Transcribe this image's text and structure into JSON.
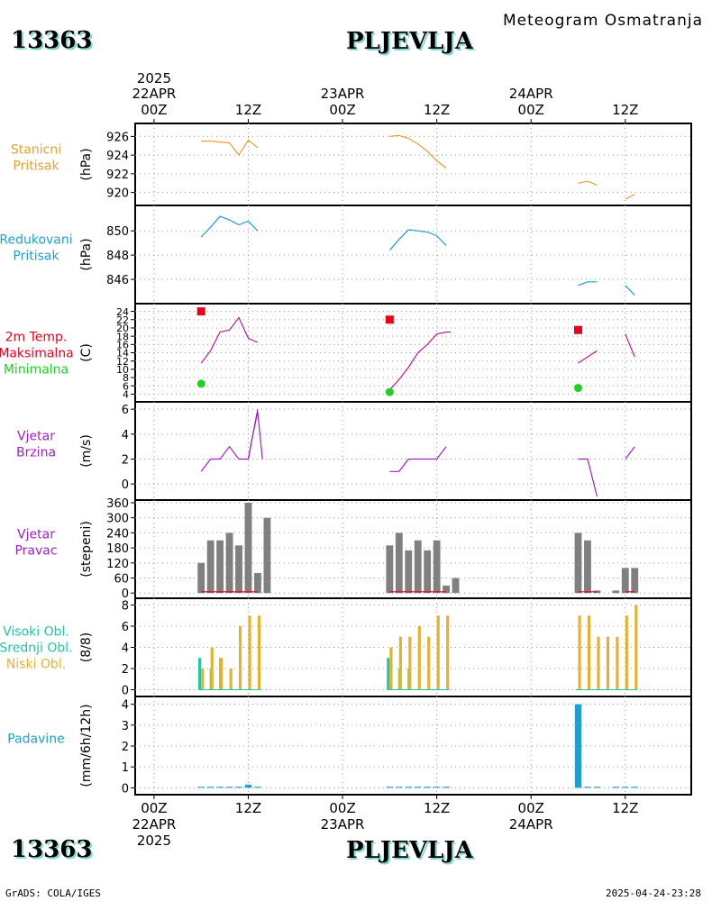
{
  "header": {
    "station_id": "13363",
    "station_name": "PLJEVLJA",
    "subtitle": "Meteogram Osmatranja"
  },
  "footer": {
    "left": "GrADS: COLA/IGES",
    "right": "2025-04-24-23:28",
    "station_id": "13363",
    "station_name": "PLJEVLJA"
  },
  "time_axis": {
    "x_range": [
      -2,
      57
    ],
    "top_year": "2025",
    "bottom_year": "2025",
    "ticks": [
      {
        "x": 0,
        "hour": "00Z",
        "date": "22APR"
      },
      {
        "x": 10,
        "hour": "12Z",
        "date": ""
      },
      {
        "x": 20,
        "hour": "00Z",
        "date": "23APR"
      },
      {
        "x": 30,
        "hour": "12Z",
        "date": ""
      },
      {
        "x": 40,
        "hour": "00Z",
        "date": "24APR"
      },
      {
        "x": 50,
        "hour": "12Z",
        "date": ""
      }
    ]
  },
  "colors": {
    "pressure_station": "#e8a030",
    "pressure_reduced": "#1e9fd0",
    "temp_max": "#e8001c",
    "temp_min": "#1ed21e",
    "temp_line": "#c0189a",
    "wind_speed": "#a020c8",
    "wind_dir_bar": "#808080",
    "wind_dir_line": "#e8001c",
    "cloud_high": "#1ec8a0",
    "cloud_mid": "#96c83c",
    "cloud_low": "#e8b030",
    "precip": "#1e9fd0"
  },
  "chart_data": [
    {
      "type": "line",
      "label_lines": [
        "Stanicni",
        "Pritisak"
      ],
      "label_color": "#e8a030",
      "ylabel": "(hPa)",
      "yticks": [
        920,
        922,
        924,
        926
      ],
      "ylim": [
        919,
        927
      ],
      "series": [
        {
          "color": "#e8a030",
          "x": [
            5,
            6,
            7,
            8,
            9,
            10,
            11
          ],
          "y": [
            925.5,
            925.5,
            925.4,
            925.3,
            924.0,
            925.6,
            924.8
          ]
        },
        {
          "color": "#e8a030",
          "x": [
            25,
            26,
            27,
            28,
            29,
            30,
            31
          ],
          "y": [
            926.0,
            926.1,
            925.8,
            925.2,
            924.4,
            923.4,
            922.6
          ]
        },
        {
          "color": "#e8a030",
          "x": [
            45,
            46,
            47
          ],
          "y": [
            921.0,
            921.2,
            920.8
          ]
        },
        {
          "color": "#e8a030",
          "x": [
            50,
            51
          ],
          "y": [
            919.3,
            919.8
          ]
        }
      ]
    },
    {
      "type": "line",
      "label_lines": [
        "Redukovani",
        "Pritisak"
      ],
      "label_color": "#1e9fd0",
      "ylabel": "(hPa)",
      "yticks": [
        846,
        848,
        850
      ],
      "ylim": [
        844.3,
        851.8
      ],
      "series": [
        {
          "color": "#1e9fd0",
          "x": [
            5,
            6,
            7,
            8,
            9,
            10,
            11
          ],
          "y": [
            849.5,
            850.3,
            851.2,
            850.9,
            850.5,
            850.8,
            850.0
          ]
        },
        {
          "color": "#1e9fd0",
          "x": [
            25,
            26,
            27,
            28,
            29,
            30,
            31
          ],
          "y": [
            848.4,
            849.3,
            850.1,
            850.0,
            849.9,
            849.6,
            848.8
          ]
        },
        {
          "color": "#1e9fd0",
          "x": [
            45,
            46,
            47
          ],
          "y": [
            845.5,
            845.8,
            845.8
          ]
        },
        {
          "color": "#1e9fd0",
          "x": [
            50,
            51
          ],
          "y": [
            845.5,
            844.7
          ]
        }
      ]
    },
    {
      "type": "line",
      "label_lines": [
        "2m Temp.",
        "Maksimalna",
        "Minimalna"
      ],
      "label_colors": [
        "#e8001c",
        "#e8001c",
        "#1ed21e"
      ],
      "ylabel": "(C)",
      "yticks": [
        4,
        6,
        8,
        10,
        12,
        14,
        16,
        18,
        20,
        22,
        24
      ],
      "ylim": [
        3,
        25
      ],
      "series": [
        {
          "color": "#c0189a",
          "x": [
            5,
            6,
            7,
            8,
            9,
            10,
            11
          ],
          "y": [
            11.5,
            14.5,
            19.0,
            19.5,
            22.5,
            17.5,
            16.5
          ]
        },
        {
          "color": "#c0189a",
          "x": [
            25,
            26,
            27,
            28,
            29,
            30,
            31
          ],
          "y": [
            5.0,
            7.5,
            10.5,
            14.0,
            16.0,
            18.5,
            19.0
          ]
        },
        {
          "color": "#c0189a",
          "x": [
            45,
            46,
            47
          ],
          "y": [
            11.5,
            13.0,
            14.5
          ]
        },
        {
          "color": "#c0189a",
          "x": [
            50,
            51
          ],
          "y": [
            18.5,
            13.0
          ]
        },
        {
          "color": "#c0189a",
          "x": [
            31,
            31.5
          ],
          "y": [
            19.0,
            19.0
          ]
        }
      ],
      "markers": [
        {
          "shape": "square",
          "color": "#e8001c",
          "x": 5,
          "y": 24.0
        },
        {
          "shape": "square",
          "color": "#e8001c",
          "x": 25,
          "y": 22.0
        },
        {
          "shape": "square",
          "color": "#e8001c",
          "x": 45,
          "y": 19.5
        },
        {
          "shape": "circle",
          "color": "#1ed21e",
          "x": 5,
          "y": 6.5
        },
        {
          "shape": "circle",
          "color": "#1ed21e",
          "x": 25,
          "y": 4.5
        },
        {
          "shape": "circle",
          "color": "#1ed21e",
          "x": 45,
          "y": 5.5
        }
      ]
    },
    {
      "type": "line",
      "label_lines": [
        "Vjetar",
        "Brzina"
      ],
      "label_color": "#a020c8",
      "ylabel": "(m/s)",
      "yticks": [
        0,
        2,
        4,
        6
      ],
      "ylim": [
        -1,
        6.3
      ],
      "series": [
        {
          "color": "#a020c8",
          "x": [
            5,
            6,
            7,
            8,
            9,
            10,
            11
          ],
          "y": [
            1,
            2,
            2,
            3,
            2,
            2,
            6
          ]
        },
        {
          "color": "#a020c8",
          "x": [
            10,
            10.5,
            11,
            11.5
          ],
          "y": [
            2,
            4,
            5.8,
            2
          ]
        },
        {
          "color": "#a020c8",
          "x": [
            25,
            26,
            27,
            28,
            29,
            30,
            31
          ],
          "y": [
            1,
            1,
            2,
            2,
            2,
            2,
            3
          ]
        },
        {
          "color": "#a020c8",
          "x": [
            45,
            46,
            47
          ],
          "y": [
            2,
            2,
            -1
          ]
        },
        {
          "color": "#a020c8",
          "x": [
            50,
            51
          ],
          "y": [
            2,
            3
          ]
        }
      ]
    },
    {
      "type": "bar",
      "label_lines": [
        "Vjetar",
        "Pravac"
      ],
      "label_color": "#a020c8",
      "ylabel": "(stepeni)",
      "yticks": [
        0,
        60,
        120,
        180,
        240,
        300,
        360
      ],
      "ylim": [
        -10,
        360
      ],
      "bar_color": "#808080",
      "bar_width": 0.75,
      "x": [
        5,
        6,
        7,
        8,
        9,
        10,
        11,
        12,
        25,
        26,
        27,
        28,
        29,
        30,
        31,
        32,
        45,
        46,
        47,
        49,
        50,
        51
      ],
      "values": [
        120,
        210,
        210,
        240,
        190,
        360,
        80,
        300,
        190,
        240,
        170,
        210,
        170,
        210,
        30,
        60,
        240,
        210,
        10,
        10,
        100,
        100
      ],
      "baseline_segments": [
        [
          5,
          11
        ],
        [
          25,
          31
        ],
        [
          45,
          47
        ],
        [
          50,
          51
        ]
      ],
      "baseline_value": 5
    },
    {
      "type": "bar",
      "label_lines": [
        "Visoki Obl.",
        "Srednji Obl.",
        "Niski Obl."
      ],
      "label_colors": [
        "#1ec8a0",
        "#1ec8a0",
        "#e8b030"
      ],
      "ylabel": "(8/8)",
      "yticks": [
        0,
        2,
        4,
        6,
        8
      ],
      "ylim": [
        -0.3,
        8.3
      ],
      "series": [
        {
          "name": "Visoki Obl.",
          "color": "#1ec8a0",
          "x": [
            5,
            25
          ],
          "values": [
            3,
            3
          ]
        },
        {
          "name": "Srednji Obl.",
          "color": "#96c83c",
          "x": [
            6,
            7,
            26,
            27
          ],
          "values": [
            2,
            3,
            2,
            2
          ]
        },
        {
          "name": "Niski Obl.",
          "color": "#e8b030",
          "x": [
            5,
            6,
            7,
            8,
            9,
            10,
            11,
            25,
            26,
            27,
            28,
            29,
            30,
            31,
            45,
            46,
            47,
            48,
            49,
            50,
            51
          ],
          "values": [
            2,
            4,
            3,
            2,
            6,
            7,
            7,
            4,
            5,
            5,
            6,
            5,
            7,
            7,
            7,
            7,
            5,
            5,
            5,
            7,
            8
          ]
        }
      ]
    },
    {
      "type": "bar",
      "label_lines": [
        "Padavine"
      ],
      "label_color": "#1e9fd0",
      "ylabel": "(mm/6h/12h)",
      "yticks": [
        0,
        1,
        2,
        3,
        4
      ],
      "ylim": [
        -0.2,
        4.2
      ],
      "bar_color": "#1e9fd0",
      "bar_width": 0.7,
      "x": [
        5,
        6,
        7,
        8,
        9,
        10,
        11,
        25,
        26,
        27,
        28,
        29,
        30,
        31,
        45,
        46,
        47,
        49,
        50,
        51
      ],
      "values": [
        0.05,
        0.05,
        0.05,
        0.05,
        0.05,
        0.15,
        0.05,
        0.05,
        0.05,
        0.05,
        0.05,
        0.05,
        0.05,
        0.05,
        4.0,
        0.05,
        0.05,
        0.05,
        0.05,
        0.05
      ]
    }
  ]
}
